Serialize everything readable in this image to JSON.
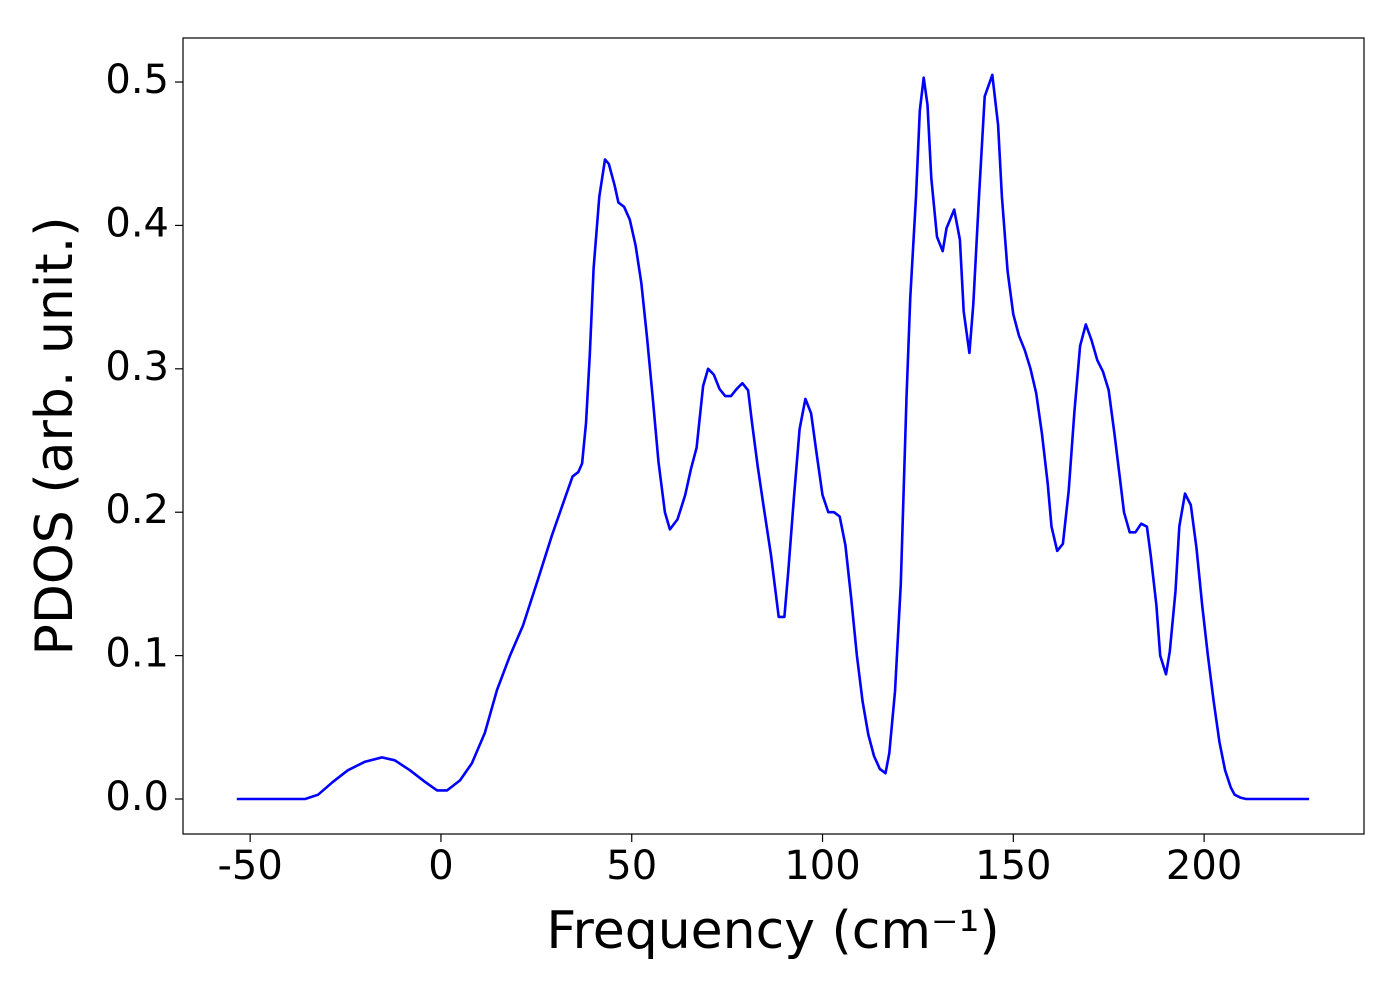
{
  "chart_data": {
    "type": "line",
    "xlabel": "Frequency (cm⁻¹)",
    "ylabel": "PDOS (arb. unit.)",
    "color": "#0000ff",
    "xlim": [
      -67.6,
      241.9
    ],
    "ylim": [
      -0.0244,
      0.5307
    ],
    "xticks": [
      -50,
      0,
      50,
      100,
      150,
      200
    ],
    "yticks": [
      {
        "value": 0,
        "label": "0.0"
      },
      0.1,
      0.2,
      0.3,
      0.4,
      0.5
    ],
    "x": [
      -53.5,
      -35.6,
      -32.2,
      -28.3,
      -24.4,
      -19.9,
      -15.5,
      -12.1,
      -8.1,
      -4.2,
      -1.0,
      1.6,
      5,
      8.1,
      11.5,
      14.7,
      18.1,
      21.5,
      25.4,
      29.1,
      32.5,
      34.5,
      36,
      37,
      38,
      39,
      40,
      41.5,
      43,
      44,
      45.5,
      46.5,
      48,
      49.5,
      51,
      52.5,
      54,
      55.5,
      57,
      58.7,
      60,
      62,
      64,
      65.5,
      67,
      68.7,
      70,
      71.5,
      73,
      74.5,
      76,
      77.5,
      79,
      80.5,
      81.5,
      83,
      84.5,
      86.5,
      88.5,
      90,
      91,
      92.5,
      94,
      95.5,
      97,
      98.5,
      100,
      101.5,
      103,
      104.5,
      106,
      107.5,
      109,
      110.5,
      112,
      113.5,
      115,
      116.5,
      117.5,
      119,
      120.5,
      122,
      123,
      124.5,
      125.5,
      126.5,
      127.5,
      128.5,
      130,
      131.5,
      132.5,
      134.5,
      136,
      137,
      138.5,
      139.5,
      141,
      142.5,
      144.5,
      146,
      147,
      148.5,
      150,
      151.5,
      153,
      154.5,
      156,
      157.5,
      159,
      160,
      161.5,
      163,
      164.5,
      166,
      167.5,
      169,
      170.5,
      172,
      173.5,
      175,
      176.5,
      178,
      179,
      180.5,
      182,
      183.5,
      185,
      186,
      187.5,
      188.5,
      190,
      191,
      192.5,
      193.5,
      195,
      196.5,
      198,
      199.5,
      201,
      202.5,
      204,
      205.5,
      207,
      208,
      209.5,
      211,
      227.5
    ],
    "values": [
      0,
      0,
      0.003,
      0.012,
      0.02,
      0.026,
      0.029,
      0.027,
      0.02,
      0.012,
      0.006,
      0.006,
      0.013,
      0.025,
      0.046,
      0.076,
      0.1,
      0.121,
      0.153,
      0.184,
      0.21,
      0.225,
      0.228,
      0.234,
      0.262,
      0.31,
      0.37,
      0.42,
      0.446,
      0.443,
      0.428,
      0.416,
      0.413,
      0.404,
      0.386,
      0.36,
      0.322,
      0.28,
      0.235,
      0.2,
      0.188,
      0.195,
      0.212,
      0.23,
      0.245,
      0.288,
      0.3,
      0.296,
      0.286,
      0.281,
      0.281,
      0.286,
      0.29,
      0.285,
      0.263,
      0.232,
      0.205,
      0.17,
      0.127,
      0.127,
      0.158,
      0.21,
      0.258,
      0.279,
      0.269,
      0.24,
      0.212,
      0.2,
      0.2,
      0.197,
      0.177,
      0.14,
      0.1,
      0.068,
      0.045,
      0.03,
      0.021,
      0.018,
      0.032,
      0.075,
      0.15,
      0.28,
      0.35,
      0.42,
      0.48,
      0.503,
      0.484,
      0.433,
      0.392,
      0.382,
      0.398,
      0.411,
      0.39,
      0.34,
      0.311,
      0.345,
      0.42,
      0.49,
      0.505,
      0.47,
      0.42,
      0.368,
      0.338,
      0.323,
      0.313,
      0.3,
      0.283,
      0.255,
      0.22,
      0.19,
      0.173,
      0.178,
      0.215,
      0.27,
      0.316,
      0.331,
      0.32,
      0.306,
      0.298,
      0.285,
      0.255,
      0.222,
      0.2,
      0.186,
      0.186,
      0.192,
      0.19,
      0.17,
      0.135,
      0.1,
      0.087,
      0.103,
      0.145,
      0.19,
      0.213,
      0.205,
      0.175,
      0.135,
      0.1,
      0.068,
      0.04,
      0.02,
      0.008,
      0.003,
      0.001,
      0,
      0
    ]
  }
}
